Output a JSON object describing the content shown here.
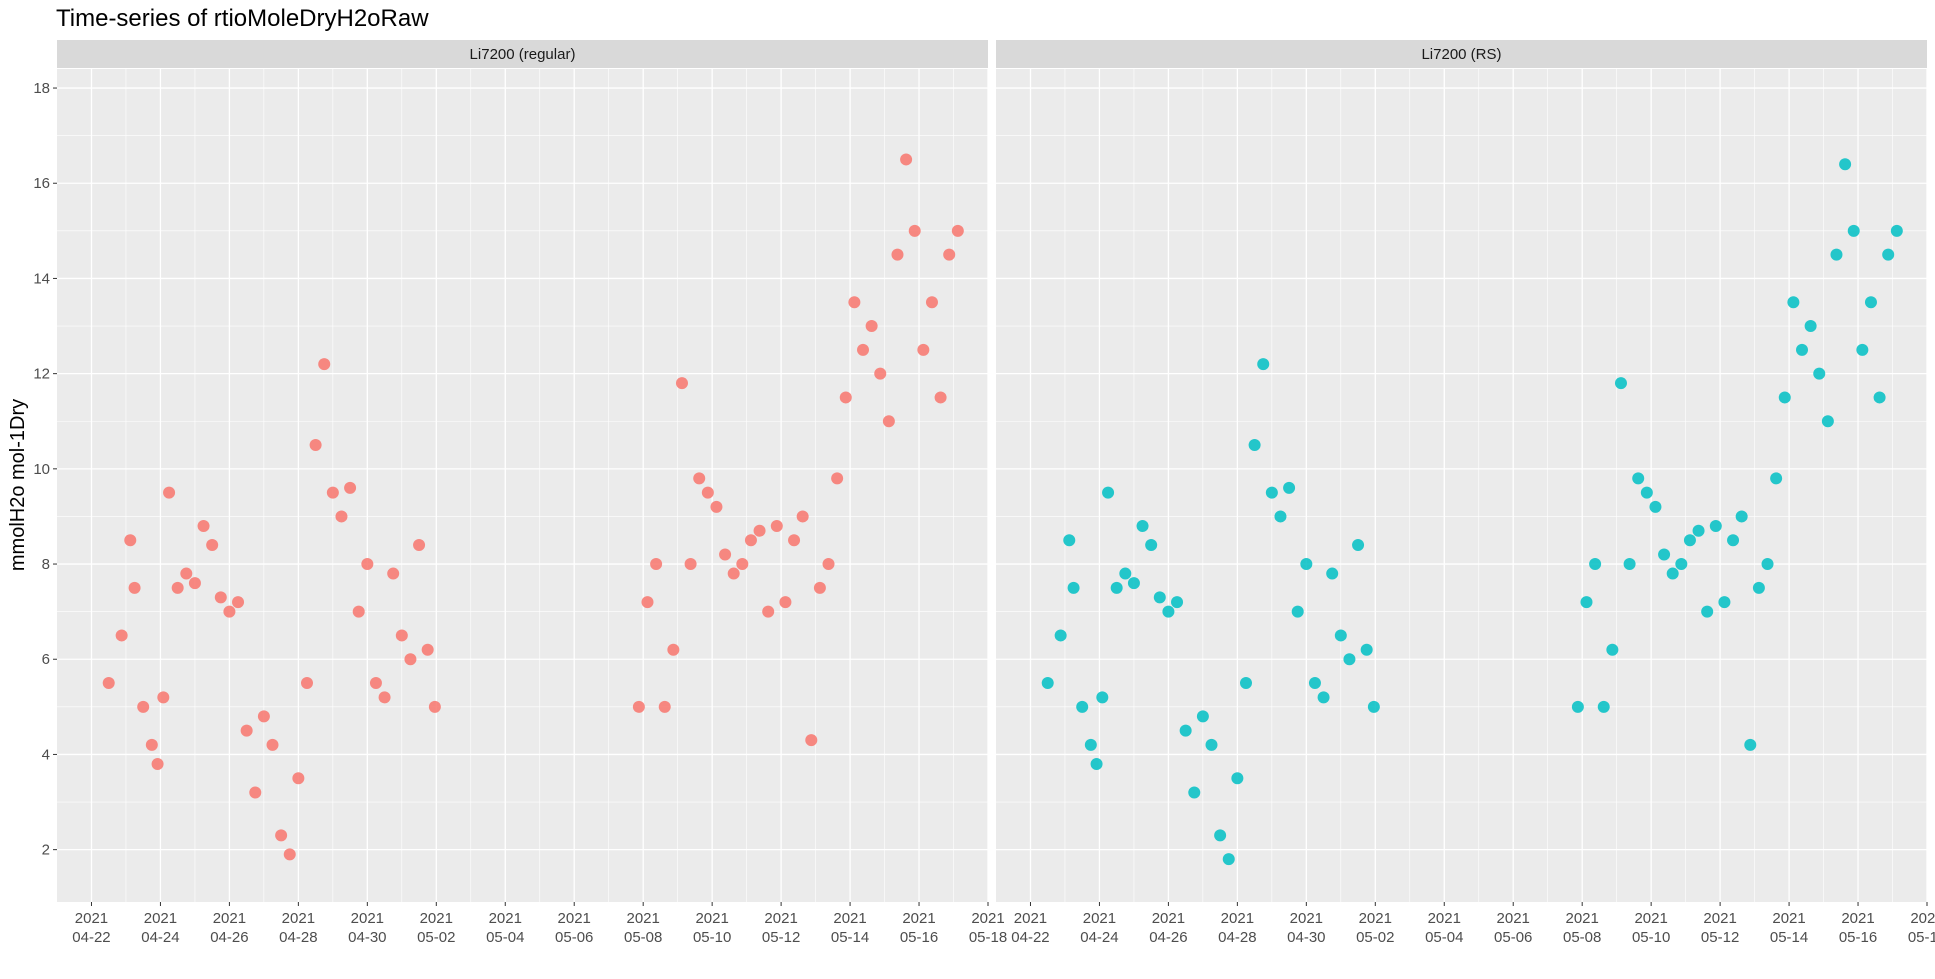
{
  "chart_data": {
    "type": "scatter",
    "title": "Time-series of rtioMoleDryH2oRaw",
    "xlabel": "",
    "ylabel": "mmolH2o mol-1Dry",
    "ylim": [
      0.9,
      18.4
    ],
    "xlim": [
      "2021-04-21T00:00",
      "2021-05-18T00:00"
    ],
    "y_ticks": [
      2,
      4,
      6,
      8,
      10,
      12,
      14,
      16,
      18
    ],
    "x_ticks": [
      {
        "date": "2021-04-22",
        "year": "2021",
        "md": "04-22"
      },
      {
        "date": "2021-04-24",
        "year": "2021",
        "md": "04-24"
      },
      {
        "date": "2021-04-26",
        "year": "2021",
        "md": "04-26"
      },
      {
        "date": "2021-04-28",
        "year": "2021",
        "md": "04-28"
      },
      {
        "date": "2021-04-30",
        "year": "2021",
        "md": "04-30"
      },
      {
        "date": "2021-05-02",
        "year": "2021",
        "md": "05-02"
      },
      {
        "date": "2021-05-04",
        "year": "2021",
        "md": "05-04"
      },
      {
        "date": "2021-05-06",
        "year": "2021",
        "md": "05-06"
      },
      {
        "date": "2021-05-08",
        "year": "2021",
        "md": "05-08"
      },
      {
        "date": "2021-05-10",
        "year": "2021",
        "md": "05-10"
      },
      {
        "date": "2021-05-12",
        "year": "2021",
        "md": "05-12"
      },
      {
        "date": "2021-05-14",
        "year": "2021",
        "md": "05-14"
      },
      {
        "date": "2021-05-16",
        "year": "2021",
        "md": "05-16"
      },
      {
        "date": "2021-05-18",
        "year": "2021",
        "md": "05-18"
      }
    ],
    "grid": true,
    "legend": "none",
    "colors": {
      "regular": "#F8766D",
      "rs": "#00BFC4",
      "panel_bg": "#EBEBEB",
      "strip_bg": "#D9D9D9",
      "grid": "#FFFFFF"
    },
    "series": [
      {
        "name": "Li7200 (regular)",
        "color": "#F8766D",
        "x": [
          "2021-04-22T12:00",
          "2021-04-22T21:00",
          "2021-04-23T03:00",
          "2021-04-23T06:00",
          "2021-04-23T12:00",
          "2021-04-23T18:00",
          "2021-04-23T22:00",
          "2021-04-24T02:00",
          "2021-04-24T06:00",
          "2021-04-24T12:00",
          "2021-04-24T18:00",
          "2021-04-25T00:00",
          "2021-04-25T06:00",
          "2021-04-25T12:00",
          "2021-04-25T18:00",
          "2021-04-26T00:00",
          "2021-04-26T06:00",
          "2021-04-26T12:00",
          "2021-04-26T18:00",
          "2021-04-27T00:00",
          "2021-04-27T06:00",
          "2021-04-27T12:00",
          "2021-04-27T18:00",
          "2021-04-28T00:00",
          "2021-04-28T06:00",
          "2021-04-28T12:00",
          "2021-04-28T18:00",
          "2021-04-29T00:00",
          "2021-04-29T06:00",
          "2021-04-29T12:00",
          "2021-04-29T18:00",
          "2021-04-30T00:00",
          "2021-04-30T06:00",
          "2021-04-30T12:00",
          "2021-04-30T18:00",
          "2021-05-01T00:00",
          "2021-05-01T06:00",
          "2021-05-01T12:00",
          "2021-05-01T18:00",
          "2021-05-01T23:00",
          "2021-05-07T21:00",
          "2021-05-08T03:00",
          "2021-05-08T09:00",
          "2021-05-08T15:00",
          "2021-05-08T21:00",
          "2021-05-09T03:00",
          "2021-05-09T09:00",
          "2021-05-09T15:00",
          "2021-05-09T21:00",
          "2021-05-10T03:00",
          "2021-05-10T09:00",
          "2021-05-10T15:00",
          "2021-05-10T21:00",
          "2021-05-11T03:00",
          "2021-05-11T09:00",
          "2021-05-11T15:00",
          "2021-05-11T21:00",
          "2021-05-12T03:00",
          "2021-05-12T09:00",
          "2021-05-12T15:00",
          "2021-05-12T21:00",
          "2021-05-13T03:00",
          "2021-05-13T09:00",
          "2021-05-13T15:00",
          "2021-05-13T21:00",
          "2021-05-14T03:00",
          "2021-05-14T09:00",
          "2021-05-14T15:00",
          "2021-05-14T21:00",
          "2021-05-15T03:00",
          "2021-05-15T09:00",
          "2021-05-15T15:00",
          "2021-05-15T21:00",
          "2021-05-16T03:00",
          "2021-05-16T09:00",
          "2021-05-16T15:00",
          "2021-05-16T21:00",
          "2021-05-17T03:00"
        ],
        "y": [
          5.5,
          6.5,
          8.5,
          7.5,
          5.0,
          4.2,
          3.8,
          5.2,
          9.5,
          7.5,
          7.8,
          7.6,
          8.8,
          8.4,
          7.3,
          7.0,
          7.2,
          4.5,
          3.2,
          4.8,
          4.2,
          2.3,
          1.9,
          3.5,
          5.5,
          10.5,
          12.2,
          9.5,
          9.0,
          9.6,
          7.0,
          8.0,
          5.5,
          5.2,
          7.8,
          6.5,
          6.0,
          8.4,
          6.2,
          5.0,
          5.0,
          7.2,
          8.0,
          5.0,
          6.2,
          11.8,
          8.0,
          9.8,
          9.5,
          9.2,
          8.2,
          7.8,
          8.0,
          8.5,
          8.7,
          7.0,
          8.8,
          7.2,
          8.5,
          9.0,
          4.3,
          7.5,
          8.0,
          9.8,
          11.5,
          13.5,
          12.5,
          13.0,
          12.0,
          11.0,
          14.5,
          16.5,
          15.0,
          12.5,
          13.5,
          11.5,
          14.5,
          15.0
        ]
      },
      {
        "name": "Li7200 (RS)",
        "color": "#00BFC4",
        "x": [
          "2021-04-22T12:00",
          "2021-04-22T21:00",
          "2021-04-23T03:00",
          "2021-04-23T06:00",
          "2021-04-23T12:00",
          "2021-04-23T18:00",
          "2021-04-23T22:00",
          "2021-04-24T02:00",
          "2021-04-24T06:00",
          "2021-04-24T12:00",
          "2021-04-24T18:00",
          "2021-04-25T00:00",
          "2021-04-25T06:00",
          "2021-04-25T12:00",
          "2021-04-25T18:00",
          "2021-04-26T00:00",
          "2021-04-26T06:00",
          "2021-04-26T12:00",
          "2021-04-26T18:00",
          "2021-04-27T00:00",
          "2021-04-27T06:00",
          "2021-04-27T12:00",
          "2021-04-27T18:00",
          "2021-04-28T00:00",
          "2021-04-28T06:00",
          "2021-04-28T12:00",
          "2021-04-28T18:00",
          "2021-04-29T00:00",
          "2021-04-29T06:00",
          "2021-04-29T12:00",
          "2021-04-29T18:00",
          "2021-04-30T00:00",
          "2021-04-30T06:00",
          "2021-04-30T12:00",
          "2021-04-30T18:00",
          "2021-05-01T00:00",
          "2021-05-01T06:00",
          "2021-05-01T12:00",
          "2021-05-01T18:00",
          "2021-05-01T23:00",
          "2021-05-07T21:00",
          "2021-05-08T03:00",
          "2021-05-08T09:00",
          "2021-05-08T15:00",
          "2021-05-08T21:00",
          "2021-05-09T03:00",
          "2021-05-09T09:00",
          "2021-05-09T15:00",
          "2021-05-09T21:00",
          "2021-05-10T03:00",
          "2021-05-10T09:00",
          "2021-05-10T15:00",
          "2021-05-10T21:00",
          "2021-05-11T03:00",
          "2021-05-11T09:00",
          "2021-05-11T15:00",
          "2021-05-11T21:00",
          "2021-05-12T03:00",
          "2021-05-12T09:00",
          "2021-05-12T15:00",
          "2021-05-12T21:00",
          "2021-05-13T03:00",
          "2021-05-13T09:00",
          "2021-05-13T15:00",
          "2021-05-13T21:00",
          "2021-05-14T03:00",
          "2021-05-14T09:00",
          "2021-05-14T15:00",
          "2021-05-14T21:00",
          "2021-05-15T03:00",
          "2021-05-15T09:00",
          "2021-05-15T15:00",
          "2021-05-15T21:00",
          "2021-05-16T03:00",
          "2021-05-16T09:00",
          "2021-05-16T15:00",
          "2021-05-16T21:00",
          "2021-05-17T03:00"
        ],
        "y": [
          5.5,
          6.5,
          8.5,
          7.5,
          5.0,
          4.2,
          3.8,
          5.2,
          9.5,
          7.5,
          7.8,
          7.6,
          8.8,
          8.4,
          7.3,
          7.0,
          7.2,
          4.5,
          3.2,
          4.8,
          4.2,
          2.3,
          1.8,
          3.5,
          5.5,
          10.5,
          12.2,
          9.5,
          9.0,
          9.6,
          7.0,
          8.0,
          5.5,
          5.2,
          7.8,
          6.5,
          6.0,
          8.4,
          6.2,
          5.0,
          5.0,
          7.2,
          8.0,
          5.0,
          6.2,
          11.8,
          8.0,
          9.8,
          9.5,
          9.2,
          8.2,
          7.8,
          8.0,
          8.5,
          8.7,
          7.0,
          8.8,
          7.2,
          8.5,
          9.0,
          4.2,
          7.5,
          8.0,
          9.8,
          11.5,
          13.5,
          12.5,
          13.0,
          12.0,
          11.0,
          14.5,
          16.4,
          15.0,
          12.5,
          13.5,
          11.5,
          14.5,
          15.0
        ]
      }
    ]
  }
}
